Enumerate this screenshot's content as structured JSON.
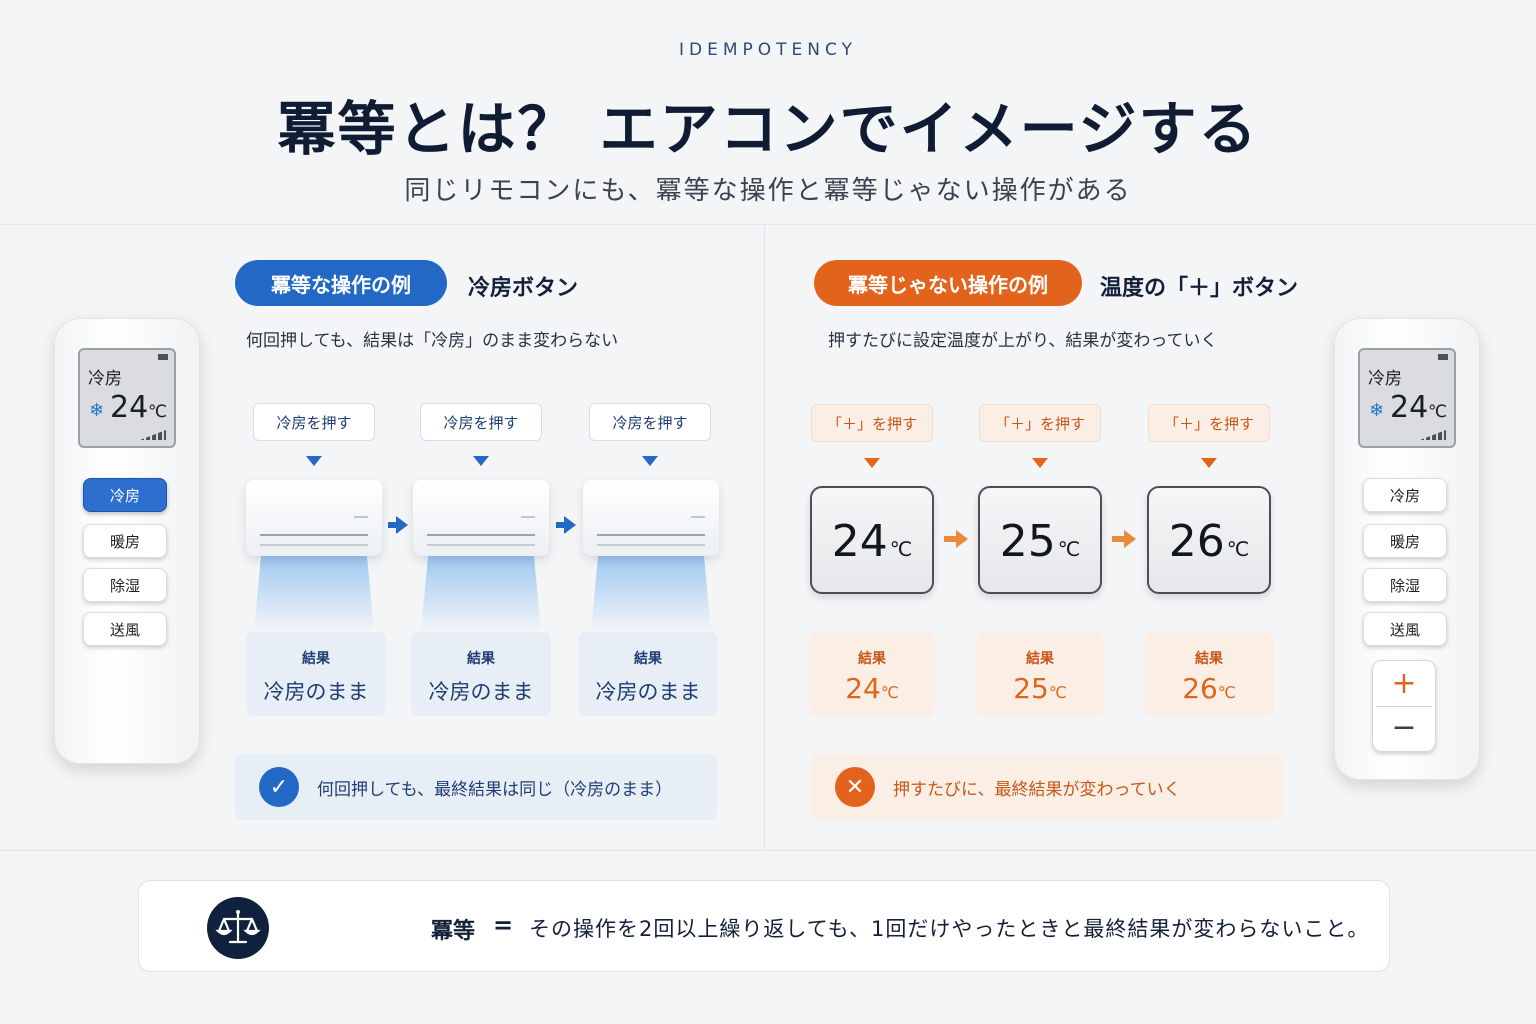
{
  "header": {
    "eyebrow": "IDEMPOTENCY",
    "title": "冪等とは？ エアコンでイメージする",
    "subtitle": "同じリモコンにも、冪等な操作と冪等じゃない操作がある"
  },
  "left": {
    "pill": "冪等な操作の例",
    "title": "冷房ボタン",
    "desc": "何回押しても、結果は「冷房」のまま変わらない",
    "steps": [
      {
        "label": "冷房を押す",
        "result_label": "結果",
        "result_value": "冷房のまま"
      },
      {
        "label": "冷房を押す",
        "result_label": "結果",
        "result_value": "冷房のまま"
      },
      {
        "label": "冷房を押す",
        "result_label": "結果",
        "result_value": "冷房のまま"
      }
    ],
    "summary_icon": "check-icon",
    "summary": "何回押しても、最終結果は同じ（冷房のまま）"
  },
  "right": {
    "pill": "冪等じゃない操作の例",
    "title": "温度の「＋」ボタン",
    "desc": "押すたびに設定温度が上がり、結果が変わっていく",
    "steps": [
      {
        "label": "「＋」を押す",
        "temp": "24",
        "unit": "℃",
        "result_label": "結果",
        "result_value": "24",
        "result_unit": "℃"
      },
      {
        "label": "「＋」を押す",
        "temp": "25",
        "unit": "℃",
        "result_label": "結果",
        "result_value": "25",
        "result_unit": "℃"
      },
      {
        "label": "「＋」を押す",
        "temp": "26",
        "unit": "℃",
        "result_label": "結果",
        "result_value": "26",
        "result_unit": "℃"
      }
    ],
    "summary_icon": "cross-icon",
    "summary": "押すたびに、最終結果が変わっていく"
  },
  "remote_left": {
    "mode": "冷房",
    "temp": "24",
    "unit": "℃",
    "buttons": [
      "冷房",
      "暖房",
      "除湿",
      "送風"
    ],
    "active": "冷房"
  },
  "remote_right": {
    "mode": "冷房",
    "temp": "24",
    "unit": "℃",
    "buttons": [
      "冷房",
      "暖房",
      "除湿",
      "送風"
    ],
    "plus": "+",
    "minus": "−"
  },
  "definition": {
    "icon": "scales-icon",
    "term": "冪等",
    "eq": "=",
    "text": "その操作を2回以上繰り返しても、1回だけやったときと最終結果が変わらないこと。"
  },
  "colors": {
    "blue": "#2368c4",
    "orange": "#e2641c",
    "navy": "#10213d"
  }
}
